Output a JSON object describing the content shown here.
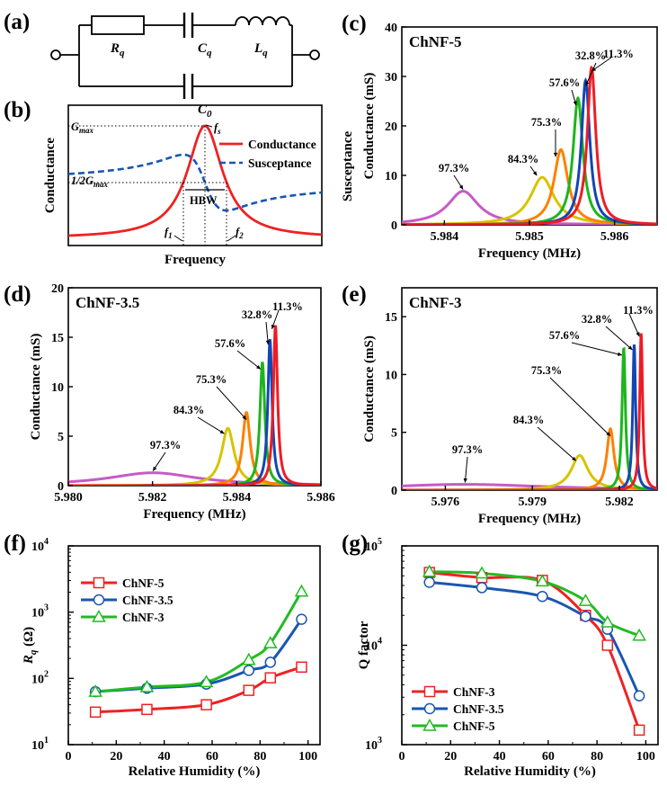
{
  "labels": {
    "a": "(a)",
    "b": "(b)",
    "c": "(c)",
    "d": "(d)",
    "e": "(e)",
    "f": "(f)",
    "g": "(g)"
  },
  "circuit": {
    "R": "R",
    "R_sub": "q",
    "C": "C",
    "C_sub": "q",
    "L": "L",
    "L_sub": "q",
    "C0": "C",
    "C0_sub": "0"
  },
  "colors": {
    "p97": "#c65bc6",
    "p84": "#d7c400",
    "p75": "#ff8000",
    "p57": "#1db51d",
    "p32": "#1346b5",
    "p11": "#ee1c25",
    "red": "#ee2222",
    "blue": "#1a56b0",
    "green": "#22bb22"
  },
  "chart_data": [
    {
      "id": "b",
      "type": "line",
      "xlabel": "Frequency",
      "ylabel": "Conductance",
      "legend": [
        "Conductance",
        "Susceptance"
      ],
      "annotations": {
        "gmax_main": "G",
        "gmax_sub": "max",
        "half": "1/2G",
        "fs_main": "f",
        "fs_sub": "s",
        "f1_main": "f",
        "f1_sub": "1",
        "f2_main": "f",
        "f2_sub": "2",
        "hbw": "HBW"
      }
    },
    {
      "id": "c",
      "type": "line",
      "title": "ChNF-5",
      "xlabel": "Frequency (MHz)",
      "ylabel": "Conductance (mS)",
      "ylabel2": "Susceptance",
      "xlim": [
        5.9835,
        5.9865
      ],
      "ylim": [
        0,
        40
      ],
      "xticks": [
        "5.984",
        "5.985",
        "5.986"
      ],
      "xtickvals": [
        5.984,
        5.985,
        5.986
      ],
      "yticks": [
        "0",
        "10",
        "20",
        "30",
        "40"
      ],
      "ytickvals": [
        0,
        10,
        20,
        30,
        40
      ],
      "series": [
        {
          "name": "97.3%",
          "x0": 5.98422,
          "peak": 6.8,
          "gamma": 0.00022
        },
        {
          "name": "84.3%",
          "x0": 5.98515,
          "peak": 9.6,
          "gamma": 0.00017
        },
        {
          "name": "75.3%",
          "x0": 5.98537,
          "peak": 15.2,
          "gamma": 0.0001
        },
        {
          "name": "57.6%",
          "x0": 5.98557,
          "peak": 25.6,
          "gamma": 7e-05
        },
        {
          "name": "32.8%",
          "x0": 5.98566,
          "peak": 29.2,
          "gamma": 6e-05
        },
        {
          "name": "11.3%",
          "x0": 5.98573,
          "peak": 31.8,
          "gamma": 6e-05
        }
      ]
    },
    {
      "id": "d",
      "type": "line",
      "title": "ChNF-3.5",
      "xlabel": "Frequency (MHz)",
      "ylabel": "Conductance (mS)",
      "xlim": [
        5.98,
        5.986
      ],
      "ylim": [
        0,
        20
      ],
      "xticks": [
        "5.980",
        "5.982",
        "5.984",
        "5.986"
      ],
      "xtickvals": [
        5.98,
        5.982,
        5.984,
        5.986
      ],
      "yticks": [
        "0",
        "5",
        "10",
        "15",
        "20"
      ],
      "ytickvals": [
        0,
        5,
        10,
        15,
        20
      ],
      "series": [
        {
          "name": "97.3%",
          "x0": 5.98201,
          "peak": 1.3,
          "gamma": 0.0013
        },
        {
          "name": "84.3%",
          "x0": 5.98379,
          "peak": 5.8,
          "gamma": 0.00018
        },
        {
          "name": "75.3%",
          "x0": 5.98423,
          "peak": 7.4,
          "gamma": 0.00011
        },
        {
          "name": "57.6%",
          "x0": 5.98461,
          "peak": 12.5,
          "gamma": 7e-05
        },
        {
          "name": "32.8%",
          "x0": 5.98479,
          "peak": 14.8,
          "gamma": 6e-05
        },
        {
          "name": "11.3%",
          "x0": 5.98492,
          "peak": 16.2,
          "gamma": 6e-05
        }
      ]
    },
    {
      "id": "e",
      "type": "line",
      "title": "ChNF-3",
      "xlabel": "Frequency (MHz)",
      "ylabel": "Conductance (mS)",
      "xlim": [
        5.9745,
        5.9833
      ],
      "ylim": [
        0,
        17.5
      ],
      "xticks": [
        "5.976",
        "5.979",
        "5.982"
      ],
      "xtickvals": [
        5.976,
        5.979,
        5.982
      ],
      "yticks": [
        "0",
        "5",
        "10",
        "15"
      ],
      "ytickvals": [
        0,
        5,
        10,
        15
      ],
      "series": [
        {
          "name": "97.3%",
          "x0": 5.97668,
          "peak": 0.5,
          "gamma": 0.0035
        },
        {
          "name": "84.3%",
          "x0": 5.98063,
          "peak": 3.0,
          "gamma": 0.00035
        },
        {
          "name": "75.3%",
          "x0": 5.98169,
          "peak": 5.3,
          "gamma": 0.00015
        },
        {
          "name": "57.6%",
          "x0": 5.98215,
          "peak": 12.3,
          "gamma": 7e-05
        },
        {
          "name": "32.8%",
          "x0": 5.98251,
          "peak": 12.6,
          "gamma": 6e-05
        },
        {
          "name": "11.3%",
          "x0": 5.98275,
          "peak": 13.6,
          "gamma": 6e-05
        }
      ]
    },
    {
      "id": "f",
      "type": "line",
      "yscale": "log",
      "xlabel": "Relative Humidity (%)",
      "ylabel": "R",
      "ylabel_sub": "q",
      "ylabel_unit": " (Ω)",
      "xlim": [
        0,
        105
      ],
      "ylim": [
        10,
        10000
      ],
      "xticks": [
        "0",
        "20",
        "40",
        "60",
        "80",
        "100"
      ],
      "xtickvals": [
        0,
        20,
        40,
        60,
        80,
        100
      ],
      "yticks": [
        {
          "b": "10",
          "e": "1"
        },
        {
          "b": "10",
          "e": "2"
        },
        {
          "b": "10",
          "e": "3"
        },
        {
          "b": "10",
          "e": "4"
        }
      ],
      "x": [
        11.3,
        32.8,
        57.6,
        75.3,
        84.3,
        97.3
      ],
      "series": [
        {
          "name": "ChNF-5",
          "marker": "square",
          "values": [
            31,
            34,
            40,
            66,
            102,
            148
          ]
        },
        {
          "name": "ChNF-3.5",
          "marker": "circle",
          "values": [
            63,
            71,
            82,
            132,
            175,
            780
          ]
        },
        {
          "name": "ChNF-3",
          "marker": "triangle",
          "values": [
            63,
            74,
            88,
            190,
            340,
            2050
          ]
        }
      ]
    },
    {
      "id": "g",
      "type": "line",
      "yscale": "log",
      "xlabel": "Relative Humidity (%)",
      "ylabel": "Q factor",
      "xlim": [
        0,
        105
      ],
      "ylim": [
        1000,
        100000
      ],
      "xticks": [
        "0",
        "20",
        "40",
        "60",
        "80",
        "100"
      ],
      "xtickvals": [
        0,
        20,
        40,
        60,
        80,
        100
      ],
      "yticks": [
        {
          "b": "10",
          "e": "3"
        },
        {
          "b": "10",
          "e": "4"
        },
        {
          "b": "10",
          "e": "5"
        }
      ],
      "x": [
        11.3,
        32.8,
        57.6,
        75.3,
        84.3,
        97.3
      ],
      "series": [
        {
          "name": "ChNF-3",
          "marker": "square",
          "values": [
            54000,
            48000,
            45000,
            20000,
            10000,
            1400
          ]
        },
        {
          "name": "ChNF-3.5",
          "marker": "circle",
          "values": [
            43000,
            38000,
            31000,
            19500,
            14500,
            3100
          ]
        },
        {
          "name": "ChNF-5",
          "marker": "triangle",
          "values": [
            55000,
            53000,
            44000,
            28000,
            17000,
            12500
          ]
        }
      ]
    }
  ]
}
